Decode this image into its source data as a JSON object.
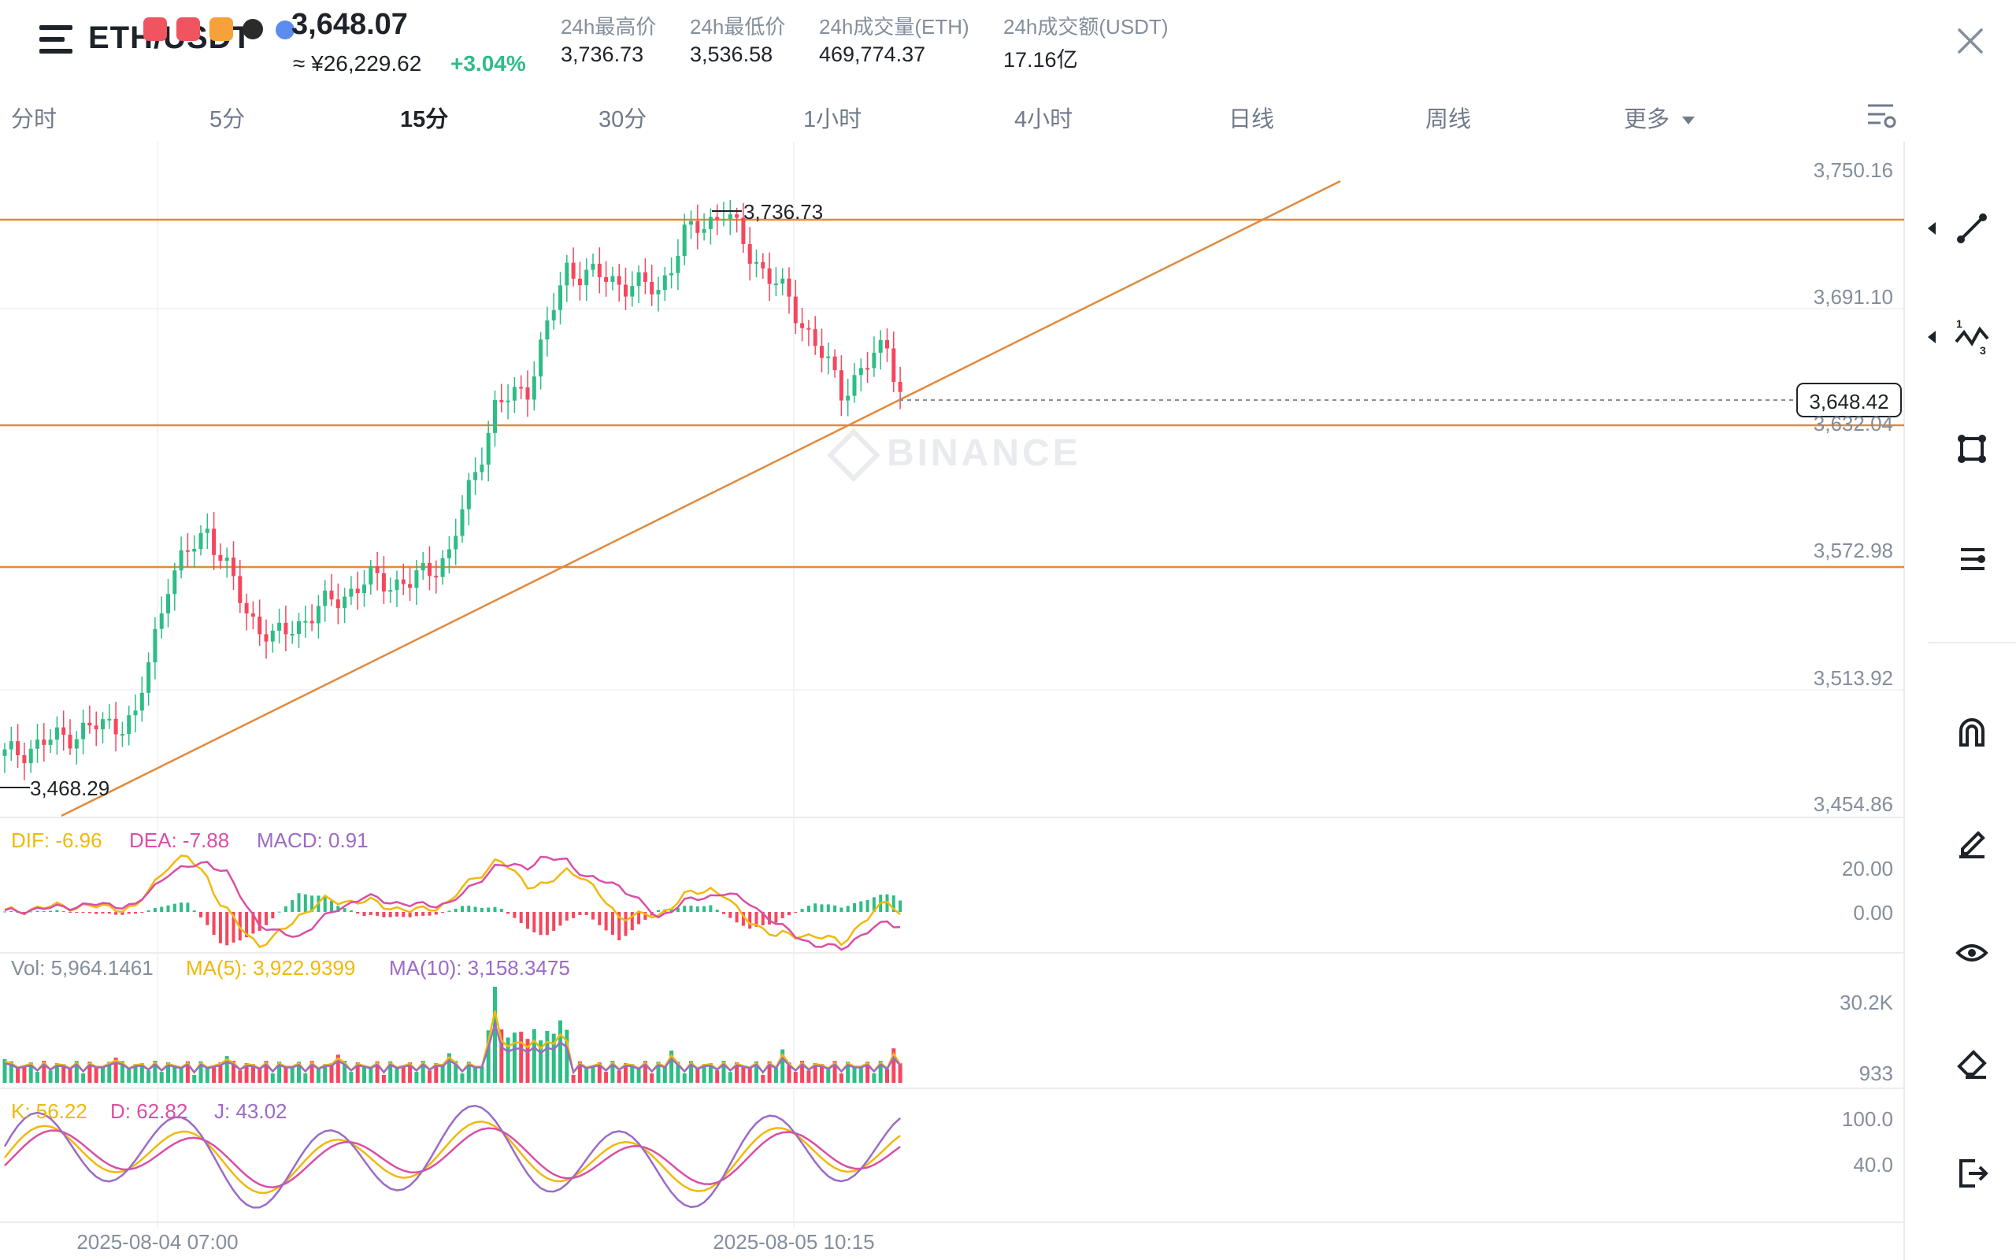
{
  "header": {
    "symbol": "ETH/USDT",
    "last_price": "3,648.07",
    "price_cny": "≈ ¥26,229.62",
    "change_pct": "+3.04%",
    "stats": [
      {
        "label": "24h最高价",
        "value": "3,736.73"
      },
      {
        "label": "24h最低价",
        "value": "3,536.58"
      },
      {
        "label": "24h成交量(ETH)",
        "value": "469,774.37"
      },
      {
        "label": "24h成交额(USDT)",
        "value": "17.16亿"
      }
    ]
  },
  "intervals": [
    {
      "label": "分时",
      "active": false
    },
    {
      "label": "5分",
      "active": false
    },
    {
      "label": "15分",
      "active": true
    },
    {
      "label": "30分",
      "active": false
    },
    {
      "label": "1小时",
      "active": false
    },
    {
      "label": "4小时",
      "active": false
    },
    {
      "label": "日线",
      "active": false
    },
    {
      "label": "周线",
      "active": false
    },
    {
      "label": "更多",
      "active": false
    }
  ],
  "main_chart": {
    "watermark": "BINANCE",
    "y_labels": [
      "3,750.16",
      "3,691.10",
      "3,632.04",
      "3,572.98",
      "3,513.92",
      "3,454.86"
    ],
    "current_price_tag": "3,648.42",
    "high_marker": "3,736.73",
    "low_marker": "3,468.29",
    "horizontal_lines": [
      3730,
      3632,
      3566
    ],
    "trendline": {
      "from": [
        "2025-08-04 02:30",
        3454
      ],
      "to": [
        "2025-08-05 18:00",
        3730
      ]
    }
  },
  "macd": {
    "dif_label": "DIF: -6.96",
    "dea_label": "DEA: -7.88",
    "macd_label": "MACD: 0.91",
    "y_labels": [
      "20.00",
      "0.00"
    ]
  },
  "volume": {
    "vol_label": "Vol: 5,964.1461",
    "ma5_label": "MA(5): 3,922.9399",
    "ma10_label": "MA(10): 3,158.3475",
    "y_labels": [
      "30.2K",
      "933"
    ]
  },
  "kdj": {
    "k_label": "K: 56.22",
    "d_label": "D: 62.82",
    "j_label": "J: 43.02",
    "y_labels": [
      "100.0",
      "40.0"
    ]
  },
  "x_labels": [
    "2025-08-04 07:00",
    "2025-08-05 10:15"
  ],
  "colors": {
    "up": "#2ebd85",
    "down": "#f6465d",
    "orange_line": "#e08a3c",
    "dif": "#f0b90b",
    "dea": "#d94fa6",
    "ma10": "#9b6bc7",
    "muted": "#848e9c"
  },
  "toolbar_icons": [
    "trendline-icon",
    "wave-icon",
    "rectangle-icon",
    "fib-icon",
    "magnet-icon",
    "pencil-icon",
    "eye-icon",
    "eraser-icon",
    "exit-icon"
  ]
}
